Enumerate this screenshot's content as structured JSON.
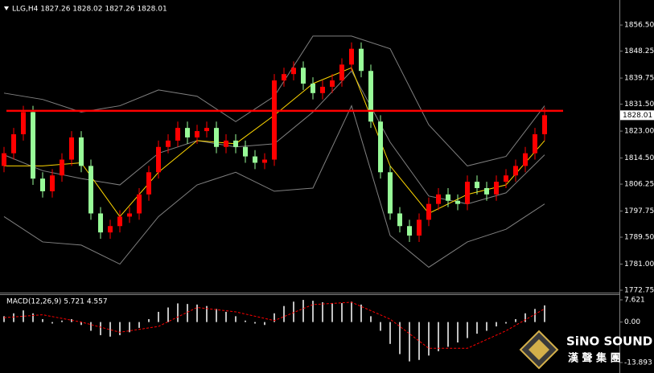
{
  "chart_data": [
    {
      "type": "candlestick",
      "title": "LLG,H4 1827.26 1828.02 1827.26 1828.01",
      "open": [
        1812,
        1816,
        1822,
        1829,
        1808,
        1804,
        1809,
        1814,
        1821,
        1812,
        1797,
        1791,
        1793,
        1796,
        1797,
        1803,
        1810,
        1818,
        1820,
        1824,
        1821,
        1823,
        1824,
        1818,
        1820,
        1818,
        1815,
        1813,
        1814,
        1839,
        1841,
        1843,
        1838,
        1835,
        1837,
        1839,
        1844,
        1849,
        1842,
        1826,
        1810,
        1797,
        1793,
        1790,
        1795,
        1800,
        1803,
        1801,
        1800,
        1807,
        1805,
        1803,
        1807,
        1809,
        1812,
        1816,
        1822
      ],
      "high": [
        1818,
        1824,
        1831,
        1831,
        1810,
        1811,
        1816,
        1823,
        1823,
        1814,
        1799,
        1795,
        1798,
        1799,
        1805,
        1812,
        1820,
        1822,
        1826,
        1826,
        1825,
        1826,
        1826,
        1822,
        1822,
        1820,
        1817,
        1816,
        1841,
        1843,
        1845,
        1845,
        1840,
        1839,
        1841,
        1846,
        1851,
        1851,
        1844,
        1828,
        1812,
        1799,
        1795,
        1797,
        1802,
        1805,
        1805,
        1803,
        1809,
        1809,
        1807,
        1809,
        1811,
        1814,
        1818,
        1824,
        1830.5
      ],
      "low": [
        1810,
        1814,
        1820,
        1806,
        1802,
        1802,
        1807,
        1812,
        1810,
        1795,
        1789,
        1789,
        1791,
        1794,
        1795,
        1801,
        1808,
        1816,
        1818,
        1819,
        1819,
        1821,
        1816,
        1816,
        1816,
        1813,
        1811,
        1811,
        1812,
        1837,
        1839,
        1836,
        1833,
        1833,
        1835,
        1837,
        1842,
        1840,
        1824,
        1808,
        1795,
        1791,
        1788,
        1788,
        1793,
        1798,
        1799,
        1798,
        1798,
        1803,
        1801,
        1801,
        1805,
        1807,
        1810,
        1814,
        1820
      ],
      "close": [
        1816,
        1822,
        1829,
        1808,
        1804,
        1809,
        1814,
        1821,
        1812,
        1797,
        1791,
        1793,
        1796,
        1797,
        1803,
        1810,
        1818,
        1820,
        1824,
        1821,
        1823,
        1824,
        1818,
        1820,
        1818,
        1815,
        1813,
        1814,
        1839,
        1841,
        1843,
        1838,
        1835,
        1837,
        1839,
        1844,
        1849,
        1842,
        1826,
        1810,
        1797,
        1793,
        1790,
        1795,
        1800,
        1803,
        1801,
        1800,
        1807,
        1805,
        1803,
        1807,
        1809,
        1812,
        1816,
        1822,
        1828.01
      ],
      "up_color": "#ff0000",
      "down_color": "#98fb98",
      "lines": [
        {
          "color": "#808080",
          "x": [
            0,
            4,
            8,
            12,
            16,
            20,
            24,
            28,
            32,
            36,
            40,
            44,
            48,
            52,
            56
          ],
          "values": [
            1835,
            1833,
            1829,
            1831,
            1836,
            1834,
            1826,
            1834,
            1853,
            1853,
            1849,
            1825,
            1812,
            1815,
            1831
          ]
        },
        {
          "color": "#808080",
          "x": [
            0,
            4,
            8,
            12,
            16,
            20,
            24,
            28,
            32,
            36,
            40,
            44,
            48,
            52,
            56
          ],
          "values": [
            1815.5,
            1810.5,
            1808,
            1806,
            1816,
            1820,
            1818,
            1819,
            1829,
            1842,
            1819.5,
            1802.5,
            1800,
            1803.5,
            1815.5
          ]
        },
        {
          "color": "#808080",
          "x": [
            0,
            4,
            8,
            12,
            16,
            20,
            24,
            28,
            32,
            36,
            40,
            44,
            48,
            52,
            56
          ],
          "values": [
            1796,
            1788,
            1787,
            1781,
            1796,
            1806,
            1810,
            1804,
            1805,
            1831,
            1790,
            1780,
            1788,
            1792,
            1800
          ]
        },
        {
          "color": "#ffd700",
          "x": [
            0,
            4,
            8,
            12,
            16,
            20,
            24,
            28,
            32,
            36,
            40,
            44,
            48,
            52,
            56
          ],
          "values": [
            1812,
            1812,
            1813,
            1796,
            1810,
            1820,
            1819,
            1828,
            1838,
            1843,
            1812,
            1797,
            1803,
            1806,
            1820
          ]
        }
      ],
      "hline": 1829.4,
      "hline_color": "#ff0000",
      "last_price": 1828.01,
      "ylim": [
        1772.5,
        1864.4
      ],
      "yticks": [
        {
          "value": 1856.5,
          "label": "1856.50"
        },
        1848.25,
        1839.75,
        {
          "value": 1831.5,
          "label": "1831.50"
        },
        {
          "value": 1823,
          "label": "1823.00"
        },
        {
          "value": 1814.5,
          "label": "1814.50"
        },
        1806.25,
        1797.75,
        {
          "value": 1789.5,
          "label": "1789.50"
        },
        {
          "value": 1781,
          "label": "1781.00"
        },
        1772.75
      ]
    },
    {
      "type": "macd",
      "title": "MACD(12,26,9) 5.721 4.557",
      "values": [
        2,
        3,
        4,
        3,
        1,
        -0.5,
        0.5,
        1,
        -1,
        -3,
        -4.5,
        -5,
        -4.5,
        -3.5,
        -2,
        1,
        3.5,
        5,
        6.4,
        6.2,
        6,
        5.5,
        4.5,
        3.5,
        2,
        0.5,
        -0.5,
        -1,
        3,
        5.5,
        7,
        7.6,
        7.3,
        6.8,
        6.5,
        6.5,
        7,
        6,
        2,
        -3,
        -7.5,
        -11,
        -13.5,
        -13,
        -11.5,
        -10,
        -8.5,
        -7,
        -5.5,
        -4,
        -3,
        -1.5,
        -0.5,
        1,
        3,
        4.5,
        5.721
      ],
      "color": "#c0c0c0",
      "signal": {
        "color": "#ff0000",
        "x": [
          0,
          4,
          8,
          12,
          16,
          20,
          24,
          28,
          32,
          36,
          40,
          44,
          48,
          52,
          56
        ],
        "values": [
          1.5,
          2.5,
          0,
          -3.5,
          -1.5,
          5,
          3.5,
          0.5,
          6,
          6.8,
          1,
          -9,
          -9,
          -3,
          4.557
        ]
      },
      "ylim": [
        -16.93,
        9.55
      ],
      "yticks": [
        7.621,
        {
          "value": 0,
          "label": "0.00"
        },
        -13.893
      ]
    }
  ],
  "logo": {
    "brand": "SiNO SOUND",
    "subtitle": "漢 聲 集 團"
  }
}
